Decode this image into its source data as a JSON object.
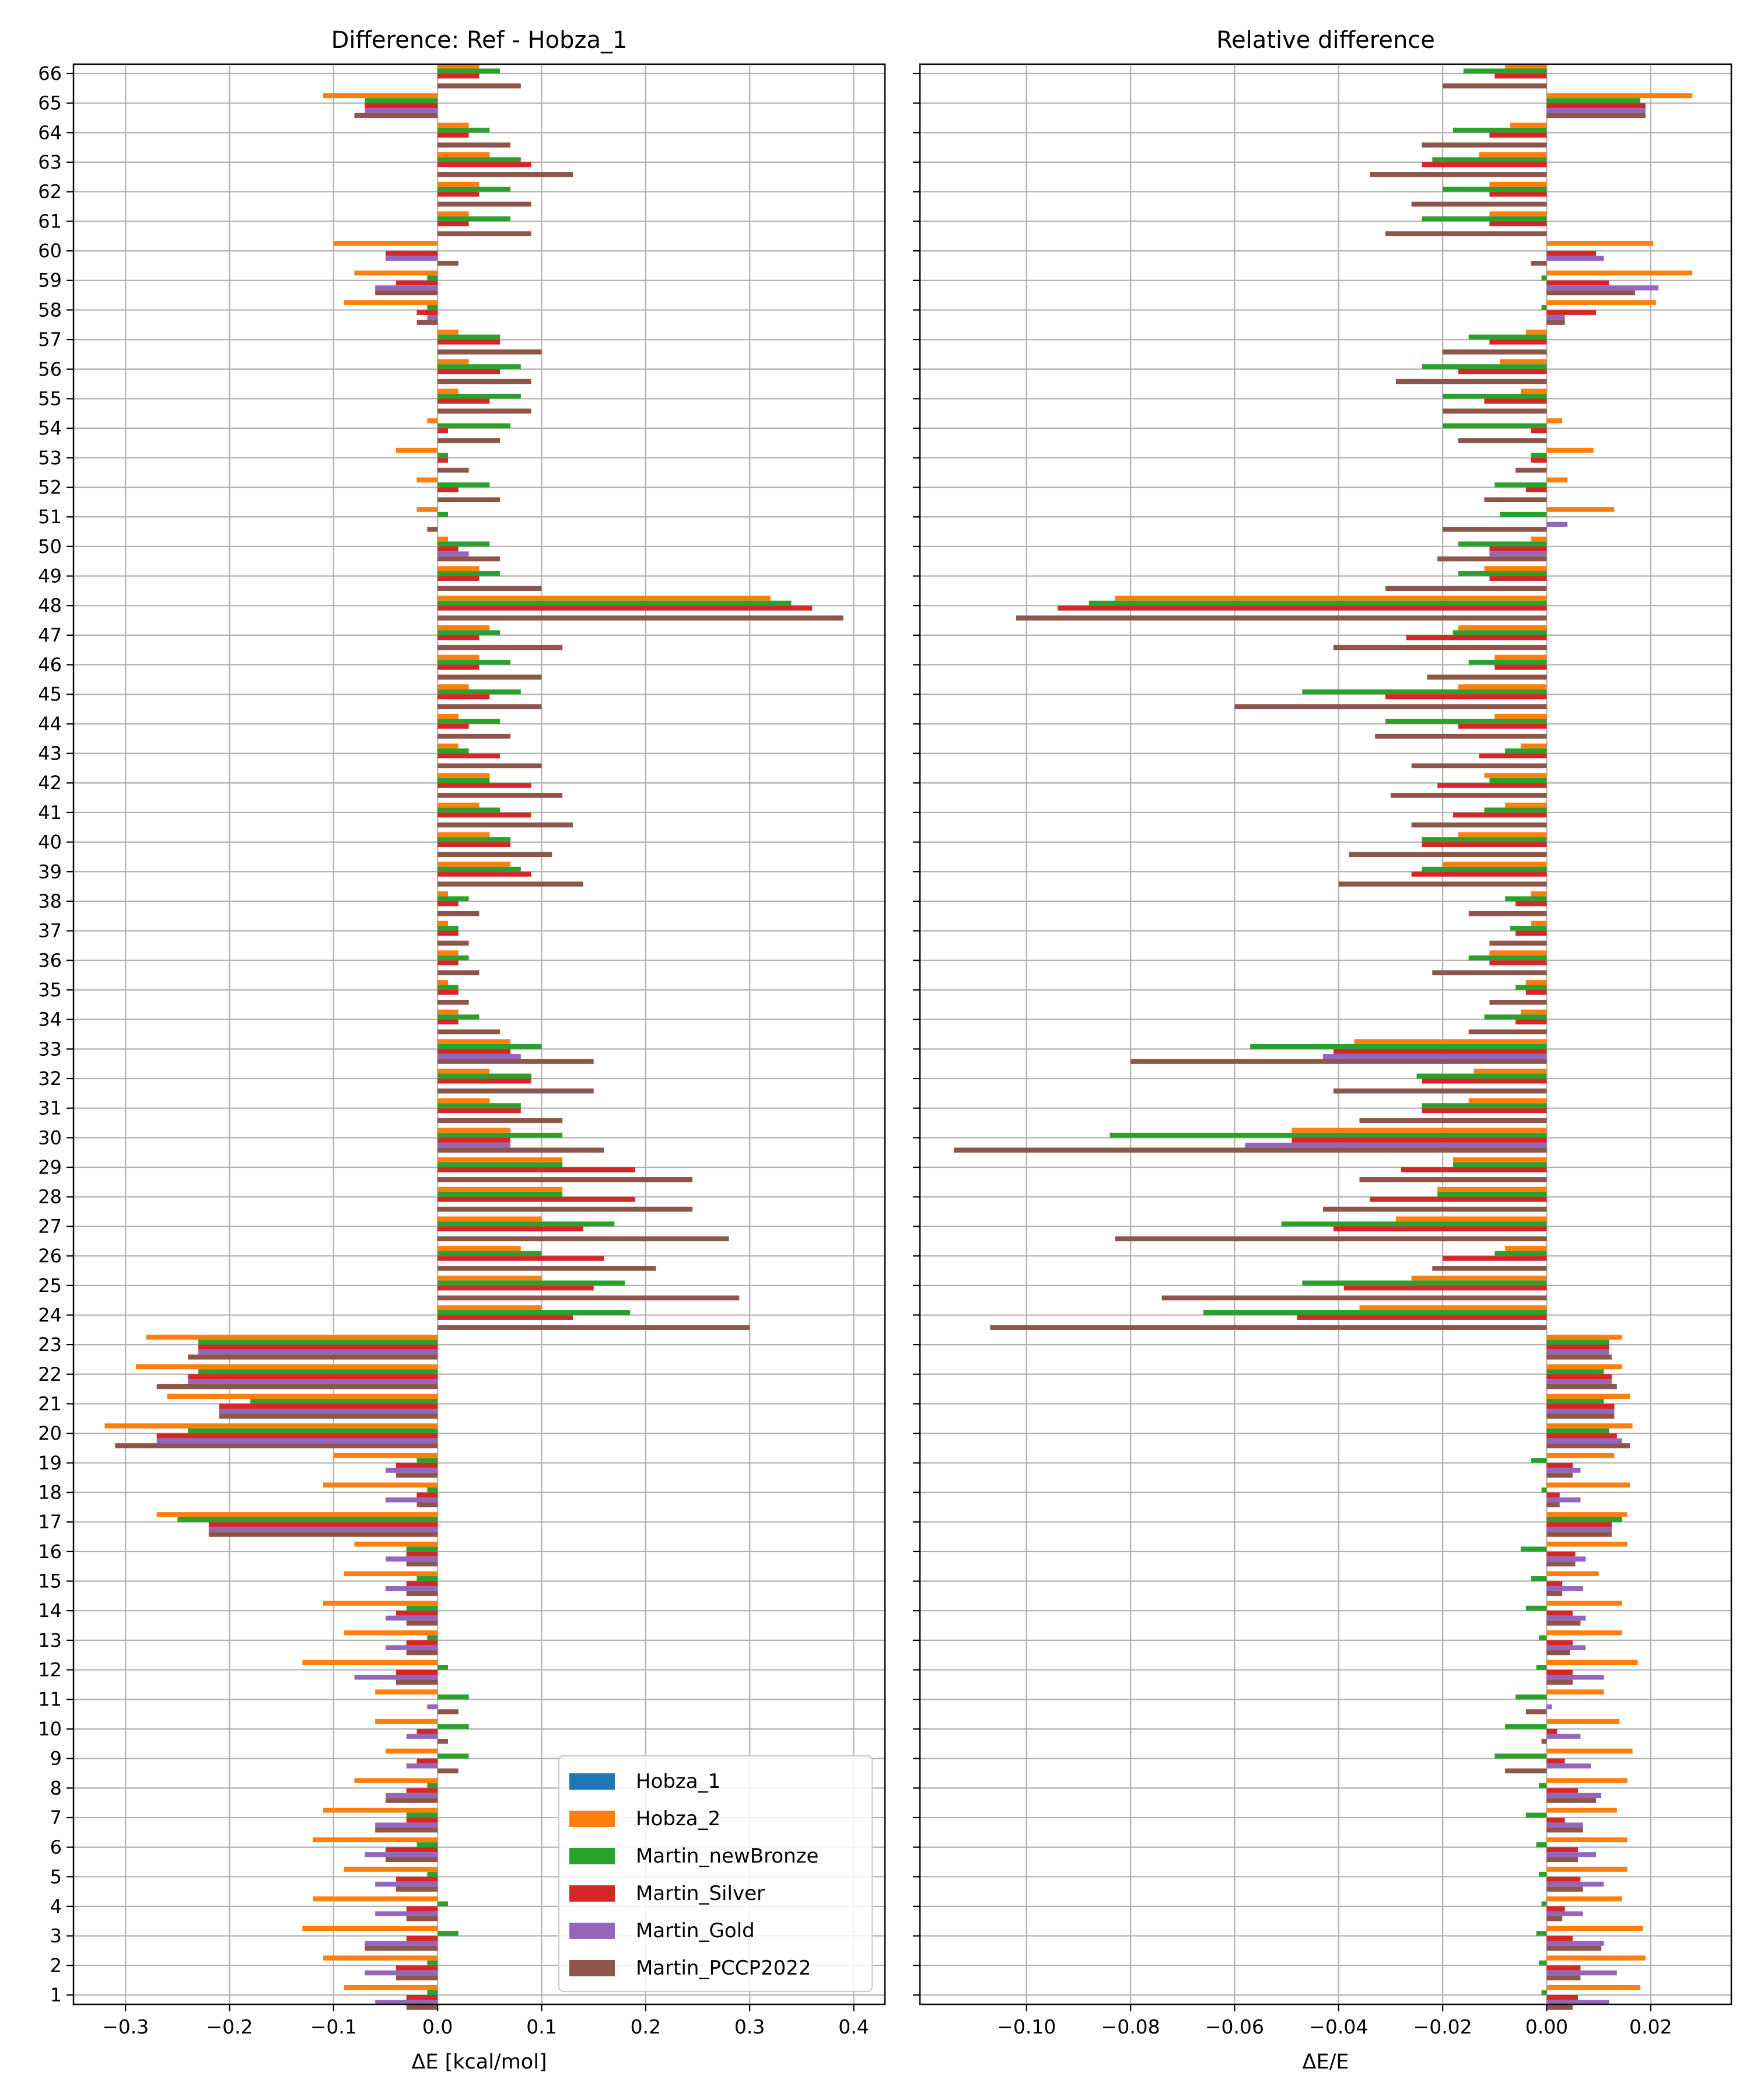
{
  "chart_data": [
    {
      "type": "bar",
      "orientation": "horizontal",
      "title": "Difference: Ref - Hobza_1",
      "xlabel": "ΔE [kcal/mol]",
      "ylabel": "",
      "xlim": [
        -0.35,
        0.43
      ],
      "xticks": [
        -0.3,
        -0.2,
        -0.1,
        0.0,
        0.1,
        0.2,
        0.3,
        0.4
      ],
      "xtick_labels": [
        "−0.3",
        "−0.2",
        "−0.1",
        "0.0",
        "0.1",
        "0.2",
        "0.3",
        "0.4"
      ],
      "grid": true,
      "legend_position": "lower-right",
      "categories": [
        1,
        2,
        3,
        4,
        5,
        6,
        7,
        8,
        9,
        10,
        11,
        12,
        13,
        14,
        15,
        16,
        17,
        18,
        19,
        20,
        21,
        22,
        23,
        24,
        25,
        26,
        27,
        28,
        29,
        30,
        31,
        32,
        33,
        34,
        35,
        36,
        37,
        38,
        39,
        40,
        41,
        42,
        43,
        44,
        45,
        46,
        47,
        48,
        49,
        50,
        51,
        52,
        53,
        54,
        55,
        56,
        57,
        58,
        59,
        60,
        61,
        62,
        63,
        64,
        65,
        66
      ],
      "series": [
        {
          "name": "Hobza_1",
          "color": "#1f77b4",
          "values": [
            0,
            0,
            0,
            0,
            0,
            0,
            0,
            0,
            0,
            0,
            0,
            0,
            0,
            0,
            0,
            0,
            0,
            0,
            0,
            0,
            0,
            0,
            0,
            0,
            0,
            0,
            0,
            0,
            0,
            0,
            0,
            0,
            0,
            0,
            0,
            0,
            0,
            0,
            0,
            0,
            0,
            0,
            0,
            0,
            0,
            0,
            0,
            0,
            0,
            0,
            0,
            0,
            0,
            0,
            0,
            0,
            0,
            0,
            0,
            0,
            0,
            0,
            0,
            0,
            0,
            0
          ]
        },
        {
          "name": "Hobza_2",
          "color": "#ff7f0e",
          "values": [
            -0.09,
            -0.11,
            -0.13,
            -0.12,
            -0.09,
            -0.12,
            -0.11,
            -0.08,
            -0.05,
            -0.06,
            -0.06,
            -0.13,
            -0.09,
            -0.11,
            -0.09,
            -0.08,
            -0.27,
            -0.11,
            -0.1,
            -0.32,
            -0.26,
            -0.29,
            -0.28,
            0.1,
            0.1,
            0.08,
            0.1,
            0.12,
            0.12,
            0.07,
            0.05,
            0.05,
            0.07,
            0.02,
            0.01,
            0.02,
            0.01,
            0.01,
            0.07,
            0.05,
            0.04,
            0.05,
            0.02,
            0.02,
            0.03,
            0.04,
            0.05,
            0.32,
            0.04,
            0.01,
            -0.02,
            -0.02,
            -0.04,
            -0.01,
            0.02,
            0.03,
            0.02,
            -0.09,
            -0.08,
            -0.1,
            0.03,
            0.04,
            0.05,
            0.03,
            -0.11,
            0.04
          ]
        },
        {
          "name": "Martin_newBronze",
          "color": "#2ca02c",
          "values": [
            -0.01,
            -0.01,
            0.02,
            0.01,
            -0.01,
            -0.02,
            -0.03,
            -0.01,
            0.03,
            0.03,
            0.03,
            0.01,
            -0.01,
            -0.03,
            -0.02,
            -0.03,
            -0.25,
            -0.01,
            -0.02,
            -0.24,
            -0.18,
            -0.23,
            -0.23,
            0.185,
            0.18,
            0.1,
            0.17,
            0.12,
            0.12,
            0.12,
            0.08,
            0.09,
            0.1,
            0.04,
            0.02,
            0.03,
            0.02,
            0.03,
            0.08,
            0.07,
            0.06,
            0.05,
            0.03,
            0.06,
            0.08,
            0.07,
            0.06,
            0.34,
            0.06,
            0.05,
            0.01,
            0.05,
            0.01,
            0.07,
            0.08,
            0.08,
            0.06,
            -0.01,
            -0.01,
            0.0,
            0.07,
            0.07,
            0.08,
            0.05,
            -0.07,
            0.06
          ]
        },
        {
          "name": "Martin_Silver",
          "color": "#d62728",
          "values": [
            -0.03,
            -0.04,
            -0.03,
            -0.03,
            -0.04,
            -0.05,
            -0.03,
            -0.03,
            -0.02,
            -0.02,
            0.0,
            -0.04,
            -0.03,
            -0.04,
            -0.03,
            -0.03,
            -0.22,
            -0.02,
            -0.04,
            -0.27,
            -0.21,
            -0.24,
            -0.23,
            0.13,
            0.15,
            0.16,
            0.14,
            0.19,
            0.19,
            0.07,
            0.08,
            0.09,
            0.07,
            0.02,
            0.02,
            0.02,
            0.02,
            0.02,
            0.09,
            0.07,
            0.09,
            0.09,
            0.06,
            0.03,
            0.05,
            0.04,
            0.04,
            0.36,
            0.04,
            0.02,
            0.0,
            0.02,
            0.01,
            0.01,
            0.05,
            0.06,
            0.06,
            -0.02,
            -0.04,
            -0.05,
            0.03,
            0.04,
            0.09,
            0.03,
            -0.07,
            0.04
          ]
        },
        {
          "name": "Martin_Gold",
          "color": "#9467bd",
          "values": [
            -0.06,
            -0.07,
            -0.07,
            -0.06,
            -0.06,
            -0.07,
            -0.06,
            -0.05,
            -0.03,
            -0.03,
            -0.01,
            -0.08,
            -0.05,
            -0.05,
            -0.05,
            -0.05,
            -0.22,
            -0.05,
            -0.05,
            -0.27,
            -0.21,
            -0.24,
            -0.23,
            0.0,
            0.0,
            0.0,
            0.0,
            0.0,
            0.0,
            0.07,
            0.0,
            0.0,
            0.08,
            0.0,
            0.0,
            0.0,
            0.0,
            0.0,
            0.0,
            0.0,
            0.0,
            0.0,
            0.0,
            0.0,
            0.0,
            0.0,
            0.0,
            0.0,
            0.0,
            0.03,
            0.0,
            0.0,
            0.0,
            0.0,
            0.0,
            0.0,
            0.0,
            -0.01,
            -0.06,
            -0.05,
            0.0,
            0.0,
            0.0,
            0.0,
            -0.07,
            0.0
          ]
        },
        {
          "name": "Martin_PCCP2022",
          "color": "#8c564b",
          "values": [
            -0.03,
            -0.04,
            -0.07,
            -0.03,
            -0.04,
            -0.05,
            -0.06,
            -0.05,
            0.02,
            0.01,
            0.02,
            -0.04,
            -0.03,
            -0.03,
            -0.03,
            -0.03,
            -0.22,
            -0.02,
            -0.04,
            -0.31,
            -0.21,
            -0.27,
            -0.24,
            0.3,
            0.29,
            0.21,
            0.28,
            0.245,
            0.245,
            0.16,
            0.12,
            0.15,
            0.15,
            0.06,
            0.03,
            0.04,
            0.03,
            0.04,
            0.14,
            0.11,
            0.13,
            0.12,
            0.1,
            0.07,
            0.1,
            0.1,
            0.12,
            0.39,
            0.1,
            0.06,
            -0.01,
            0.06,
            0.03,
            0.06,
            0.09,
            0.09,
            0.1,
            -0.02,
            -0.06,
            0.02,
            0.09,
            0.09,
            0.13,
            0.07,
            -0.08,
            0.08
          ]
        }
      ]
    },
    {
      "type": "bar",
      "orientation": "horizontal",
      "title": "Relative difference",
      "xlabel": "ΔE/E",
      "ylabel": "",
      "xlim": [
        -0.1205,
        0.0355
      ],
      "xticks": [
        -0.1,
        -0.08,
        -0.06,
        -0.04,
        -0.02,
        0.0,
        0.02
      ],
      "xtick_labels": [
        "−0.10",
        "−0.08",
        "−0.06",
        "−0.04",
        "−0.02",
        "0.00",
        "0.02"
      ],
      "grid": true,
      "categories": [
        1,
        2,
        3,
        4,
        5,
        6,
        7,
        8,
        9,
        10,
        11,
        12,
        13,
        14,
        15,
        16,
        17,
        18,
        19,
        20,
        21,
        22,
        23,
        24,
        25,
        26,
        27,
        28,
        29,
        30,
        31,
        32,
        33,
        34,
        35,
        36,
        37,
        38,
        39,
        40,
        41,
        42,
        43,
        44,
        45,
        46,
        47,
        48,
        49,
        50,
        51,
        52,
        53,
        54,
        55,
        56,
        57,
        58,
        59,
        60,
        61,
        62,
        63,
        64,
        65,
        66
      ],
      "series": [
        {
          "name": "Hobza_1",
          "color": "#1f77b4",
          "values": [
            0,
            0,
            0,
            0,
            0,
            0,
            0,
            0,
            0,
            0,
            0,
            0,
            0,
            0,
            0,
            0,
            0,
            0,
            0,
            0,
            0,
            0,
            0,
            0,
            0,
            0,
            0,
            0,
            0,
            0,
            0,
            0,
            0,
            0,
            0,
            0,
            0,
            0,
            0,
            0,
            0,
            0,
            0,
            0,
            0,
            0,
            0,
            0,
            0,
            0,
            0,
            0,
            0,
            0,
            0,
            0,
            0,
            0,
            0,
            0,
            0,
            0,
            0,
            0,
            0,
            0
          ]
        },
        {
          "name": "Hobza_2",
          "color": "#ff7f0e",
          "values": [
            0.018,
            0.019,
            0.0185,
            0.0145,
            0.0155,
            0.0155,
            0.0135,
            0.0155,
            0.0165,
            0.014,
            0.011,
            0.0175,
            0.0145,
            0.0145,
            0.01,
            0.0155,
            0.0155,
            0.016,
            0.013,
            0.0165,
            0.016,
            0.0145,
            0.0145,
            -0.036,
            -0.026,
            -0.008,
            -0.029,
            -0.021,
            -0.018,
            -0.049,
            -0.015,
            -0.014,
            -0.037,
            -0.005,
            -0.004,
            -0.011,
            -0.003,
            -0.003,
            -0.02,
            -0.017,
            -0.008,
            -0.012,
            -0.005,
            -0.01,
            -0.017,
            -0.01,
            -0.017,
            -0.083,
            -0.012,
            -0.003,
            0.013,
            0.004,
            0.009,
            0.003,
            -0.005,
            -0.009,
            -0.004,
            0.021,
            0.028,
            0.0205,
            -0.011,
            -0.011,
            -0.013,
            -0.007,
            0.028,
            -0.008
          ]
        },
        {
          "name": "Martin_newBronze",
          "color": "#2ca02c",
          "values": [
            -0.001,
            -0.0015,
            -0.002,
            -0.001,
            -0.0015,
            -0.002,
            -0.004,
            -0.0015,
            -0.01,
            -0.008,
            -0.006,
            -0.002,
            -0.0015,
            -0.004,
            -0.003,
            -0.005,
            0.0145,
            -0.001,
            -0.003,
            0.012,
            0.011,
            0.011,
            0.012,
            -0.066,
            -0.047,
            -0.01,
            -0.051,
            -0.021,
            -0.018,
            -0.084,
            -0.024,
            -0.025,
            -0.057,
            -0.012,
            -0.006,
            -0.015,
            -0.007,
            -0.008,
            -0.024,
            -0.024,
            -0.012,
            -0.011,
            -0.008,
            -0.031,
            -0.047,
            -0.015,
            -0.018,
            -0.088,
            -0.017,
            -0.017,
            -0.009,
            -0.01,
            -0.003,
            -0.02,
            -0.02,
            -0.024,
            -0.015,
            -0.001,
            -0.001,
            0.0,
            -0.024,
            -0.02,
            -0.022,
            -0.018,
            0.018,
            -0.016
          ]
        },
        {
          "name": "Martin_Silver",
          "color": "#d62728",
          "values": [
            0.006,
            0.0065,
            0.005,
            0.0035,
            0.0065,
            0.006,
            0.0035,
            0.006,
            0.0035,
            0.002,
            0.0,
            0.005,
            0.005,
            0.005,
            0.003,
            0.0055,
            0.0125,
            0.0025,
            0.005,
            0.0135,
            0.013,
            0.0125,
            0.012,
            -0.048,
            -0.039,
            -0.02,
            -0.041,
            -0.034,
            -0.028,
            -0.049,
            -0.024,
            -0.024,
            -0.041,
            -0.006,
            -0.004,
            -0.011,
            -0.006,
            -0.006,
            -0.026,
            -0.024,
            -0.018,
            -0.021,
            -0.013,
            -0.017,
            -0.031,
            -0.01,
            -0.027,
            -0.094,
            -0.011,
            -0.011,
            0.0,
            -0.004,
            -0.003,
            -0.003,
            -0.012,
            -0.017,
            -0.011,
            0.0095,
            0.012,
            0.0095,
            -0.011,
            -0.011,
            -0.024,
            -0.011,
            0.019,
            -0.01
          ]
        },
        {
          "name": "Martin_Gold",
          "color": "#9467bd",
          "values": [
            0.012,
            0.0135,
            0.011,
            0.007,
            0.011,
            0.0095,
            0.007,
            0.0105,
            0.0085,
            0.0065,
            0.001,
            0.011,
            0.0075,
            0.0075,
            0.007,
            0.0075,
            0.0125,
            0.0065,
            0.0065,
            0.0145,
            0.013,
            0.0125,
            0.012,
            0.0,
            0.0,
            0.0,
            0.0,
            0.0,
            0.0,
            -0.058,
            0.0,
            0.0,
            -0.043,
            0.0,
            0.0,
            0.0,
            0.0,
            0.0,
            0.0,
            0.0,
            0.0,
            0.0,
            0.0,
            0.0,
            0.0,
            0.0,
            0.0,
            0.0,
            0.0,
            -0.011,
            0.004,
            0.0,
            0.0,
            0.0,
            0.0,
            0.0,
            0.0,
            0.0035,
            0.0215,
            0.011,
            0.0,
            0.0,
            0.0,
            0.0,
            0.019,
            0.0
          ]
        },
        {
          "name": "Martin_PCCP2022",
          "color": "#8c564b",
          "values": [
            0.005,
            0.0065,
            0.0105,
            0.003,
            0.007,
            0.006,
            0.007,
            0.0095,
            -0.008,
            -0.001,
            -0.004,
            0.005,
            0.0045,
            0.0065,
            0.003,
            0.0055,
            0.0125,
            0.0025,
            0.005,
            0.016,
            0.013,
            0.0135,
            0.0125,
            -0.107,
            -0.074,
            -0.022,
            -0.083,
            -0.043,
            -0.036,
            -0.114,
            -0.036,
            -0.041,
            -0.08,
            -0.015,
            -0.011,
            -0.022,
            -0.011,
            -0.015,
            -0.04,
            -0.038,
            -0.026,
            -0.03,
            -0.026,
            -0.033,
            -0.06,
            -0.023,
            -0.041,
            -0.102,
            -0.031,
            -0.021,
            -0.02,
            -0.012,
            -0.006,
            -0.017,
            -0.02,
            -0.029,
            -0.02,
            0.0035,
            0.017,
            -0.003,
            -0.031,
            -0.026,
            -0.034,
            -0.024,
            0.019,
            -0.02
          ]
        }
      ]
    }
  ]
}
